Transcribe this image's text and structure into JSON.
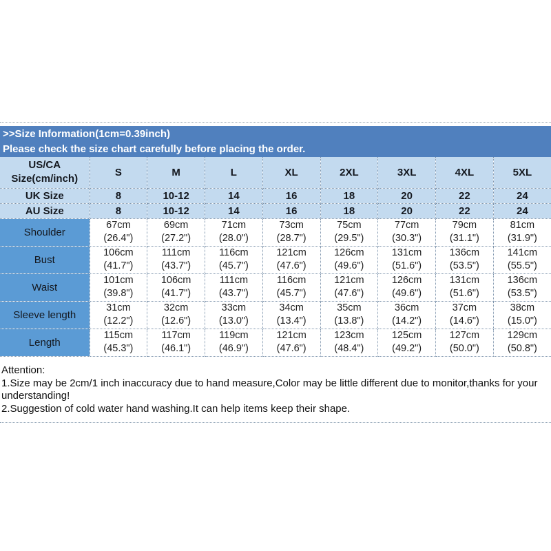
{
  "banner": {
    "title": ">>Size Information(1cm=0.39inch)",
    "subtitle": "Please check the size chart carefully before placing the order."
  },
  "size_table": {
    "corner": {
      "line1": "US/CA",
      "line2": "Size(cm/inch)"
    },
    "size_headers": [
      "S",
      "M",
      "L",
      "XL",
      "2XL",
      "3XL",
      "4XL",
      "5XL"
    ],
    "uk": {
      "label": "UK Size",
      "values": [
        "8",
        "10-12",
        "14",
        "16",
        "18",
        "20",
        "22",
        "24"
      ]
    },
    "au": {
      "label": "AU Size",
      "values": [
        "8",
        "10-12",
        "14",
        "16",
        "18",
        "20",
        "22",
        "24"
      ]
    },
    "rows": [
      {
        "label": "Shoulder",
        "cm": [
          "67cm",
          "69cm",
          "71cm",
          "73cm",
          "75cm",
          "77cm",
          "79cm",
          "81cm"
        ],
        "inch": [
          "(26.4\")",
          "(27.2\")",
          "(28.0\")",
          "(28.7\")",
          "(29.5\")",
          "(30.3\")",
          "(31.1\")",
          "(31.9\")"
        ]
      },
      {
        "label": "Bust",
        "cm": [
          "106cm",
          "111cm",
          "116cm",
          "121cm",
          "126cm",
          "131cm",
          "136cm",
          "141cm"
        ],
        "inch": [
          "(41.7\")",
          "(43.7\")",
          "(45.7\")",
          "(47.6\")",
          "(49.6\")",
          "(51.6\")",
          "(53.5\")",
          "(55.5\")"
        ]
      },
      {
        "label": "Waist",
        "cm": [
          "101cm",
          "106cm",
          "111cm",
          "116cm",
          "121cm",
          "126cm",
          "131cm",
          "136cm"
        ],
        "inch": [
          "(39.8\")",
          "(41.7\")",
          "(43.7\")",
          "(45.7\")",
          "(47.6\")",
          "(49.6\")",
          "(51.6\")",
          "(53.5\")"
        ]
      },
      {
        "label": "Sleeve length",
        "cm": [
          "31cm",
          "32cm",
          "33cm",
          "34cm",
          "35cm",
          "36cm",
          "37cm",
          "38cm"
        ],
        "inch": [
          "(12.2\")",
          "(12.6\")",
          "(13.0\")",
          "(13.4\")",
          "(13.8\")",
          "(14.2\")",
          "(14.6\")",
          "(15.0\")"
        ]
      },
      {
        "label": "Length",
        "cm": [
          "115cm",
          "117cm",
          "119cm",
          "121cm",
          "123cm",
          "125cm",
          "127cm",
          "129cm"
        ],
        "inch": [
          "(45.3\")",
          "(46.1\")",
          "(46.9\")",
          "(47.6\")",
          "(48.4\")",
          "(49.2\")",
          "(50.0\")",
          "(50.8\")"
        ]
      }
    ]
  },
  "attention": {
    "lines": [
      "Attention:",
      "1.Size may be 2cm/1 inch inaccuracy due to hand measure,Color may be little different due to monitor,thanks for your",
      "understanding!",
      "2.Suggestion of cold water hand washing.It can help items keep their shape."
    ]
  },
  "colors": {
    "banner_blue": "#5080BE",
    "header_light_blue": "#C3DAEF",
    "label_column_blue": "#5B9BD5",
    "table_border_dotted": "#7F95AD",
    "banner_text": "#FFFFFF",
    "table_text": "#14181F"
  }
}
